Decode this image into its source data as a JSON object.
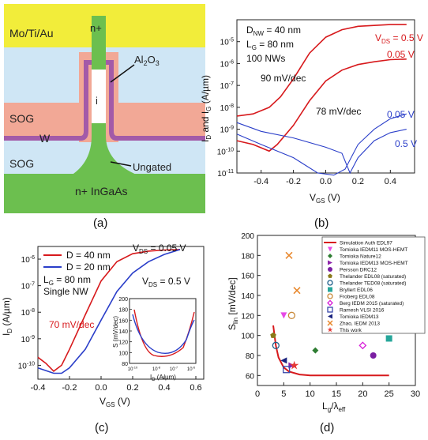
{
  "figure": {
    "panel_a": {
      "caption": "(a)",
      "labels": {
        "metal": "Mo/Ti/Au",
        "np": "n+",
        "al2o3": "Al",
        "al2o3_sub": "2",
        "al2o3_o": "O",
        "al2o3_sub2": "3",
        "i": "i",
        "sog_top": "SOG",
        "w": "W",
        "sog_bottom": "SOG",
        "ungated": "Ungated",
        "substrate": "n+ InGaAs"
      },
      "colors": {
        "metal": "#f2ed3a",
        "sog": "#cfe6f5",
        "w": "#f2a896",
        "nw": "#6cbf4f",
        "al2o3": "#a35aa8",
        "i": "#ffffff"
      }
    },
    "panel_b": {
      "caption": "(b)",
      "info": [
        "D",
        "NW",
        "= 40 nm",
        "L",
        "G",
        "= 80 nm",
        "100 NWs"
      ],
      "ss_left": "90 mV/dec",
      "ss_right": "78 mV/dec",
      "vds_red_top": "V",
      "vds_red_top_sub": "DS",
      "vds_red_top_val": " = 0.5 V",
      "vds_red_2": "0.05 V",
      "vds_blue_1": "0.05 V",
      "vds_blue_2": "0.5 V",
      "ylabel": [
        "I",
        "D",
        " and I",
        "G",
        " (A/µm)"
      ],
      "xlabel": [
        "V",
        "GS",
        " (V)"
      ],
      "xticks": [
        "-0.4",
        "-0.2",
        "0.0",
        "0.2",
        "0.4"
      ],
      "yticks": [
        {
          "b": "10",
          "e": "-5"
        },
        {
          "b": "10",
          "e": "-6"
        },
        {
          "b": "10",
          "e": "-7"
        },
        {
          "b": "10",
          "e": "-8"
        },
        {
          "b": "10",
          "e": "-9"
        },
        {
          "b": "10",
          "e": "-10"
        },
        {
          "b": "10",
          "e": "-11"
        }
      ]
    },
    "panel_c": {
      "caption": "(c)",
      "legend": [
        "D = 40 nm",
        "D = 20 nm"
      ],
      "info": [
        "L",
        "G",
        "= 80 nm",
        "Single NW"
      ],
      "vds_1": [
        "V",
        "DS",
        " = 0.05 V"
      ],
      "vds_2": [
        "V",
        "DS",
        " = 0.5 V"
      ],
      "ss": "70 mV/dec",
      "ylabel": [
        "I",
        "D",
        " (A/µm)"
      ],
      "xlabel": [
        "V",
        "GS",
        " (V)"
      ],
      "xticks": [
        "-0.4",
        "-0.2",
        "0.0",
        "0.2",
        "0.4",
        "0.6"
      ],
      "yticks": [
        {
          "b": "10",
          "e": "-6"
        },
        {
          "b": "10",
          "e": "-7"
        },
        {
          "b": "10",
          "e": "-8"
        },
        {
          "b": "10",
          "e": "-9"
        },
        {
          "b": "10",
          "e": "-10"
        }
      ],
      "inset": {
        "ylabel": "S (mV/dec)",
        "xlabel": [
          "I",
          "D",
          " (A/µm)"
        ],
        "yticks": [
          "200",
          "180",
          "160",
          "140",
          "120",
          "100",
          "80"
        ],
        "xticks": [
          {
            "b": "10",
            "e": "-10"
          },
          {
            "b": "10",
            "e": "-8"
          },
          {
            "b": "10",
            "e": "-7"
          },
          {
            "b": "10",
            "e": "-6"
          }
        ]
      }
    },
    "panel_d": {
      "caption": "(d)",
      "ylabel": [
        "S",
        "lin",
        " [mV/dec]"
      ],
      "xlabel": [
        "L",
        "g",
        "/λ",
        "eff"
      ],
      "xticks": [
        "0",
        "5",
        "10",
        "15",
        "20",
        "25",
        "30"
      ],
      "yticks": [
        "200",
        "180",
        "160",
        "140",
        "120",
        "100",
        "80",
        "60"
      ],
      "legend": [
        {
          "label": "Simulation Auth EDL97",
          "color": "#d7191c",
          "marker": "line"
        },
        {
          "label": "Tomioka IEDM11 MOS-HEMT",
          "color": "#e64ae6",
          "marker": "tri-down"
        },
        {
          "label": "Tomioka Nature12",
          "color": "#2e7d32",
          "marker": "diamond"
        },
        {
          "label": "Tomioka IEDM13 MOS-HEMT",
          "color": "#8e24aa",
          "marker": "tri-right"
        },
        {
          "label": "Persson DRC12",
          "color": "#7b1fa2",
          "marker": "hexagon"
        },
        {
          "label": "Thelander EDL08 (saturated)",
          "color": "#8a7a1a",
          "marker": "pentagon"
        },
        {
          "label": "Thelander TED08 (saturated)",
          "color": "#1f5f8b",
          "marker": "circle-open"
        },
        {
          "label": "Bryllert EDL06",
          "color": "#26a69a",
          "marker": "square"
        },
        {
          "label": "Froberg EDL08",
          "color": "#c98a3a",
          "marker": "circle-open"
        },
        {
          "label": "Berg IEDM 2015 (saturated)",
          "color": "#d81bd8",
          "marker": "diamond-open"
        },
        {
          "label": "Ramesh VLSI 2016",
          "color": "#3949ab",
          "marker": "square-open"
        },
        {
          "label": "Tomioka IEDM13",
          "color": "#1a237e",
          "marker": "tri-left"
        },
        {
          "label": "Zhao, IEDM 2013",
          "color": "#e8862a",
          "marker": "x"
        },
        {
          "label": "This work",
          "color": "#e53935",
          "marker": "star"
        }
      ]
    }
  },
  "chart_data": [
    {
      "type": "line",
      "xlabel": "VGS (V)",
      "ylabel": "ID and IG (A/µm)",
      "xlim": [
        -0.55,
        0.55
      ],
      "ylim": [
        1e-11,
        0.0001
      ],
      "yscale": "log",
      "series": [
        {
          "name": "VDS = 0.5 V",
          "x": [
            -0.55,
            -0.45,
            -0.35,
            -0.28,
            -0.2,
            -0.1,
            0.0,
            0.1,
            0.2,
            0.3,
            0.4,
            0.5
          ],
          "values": [
            4e-09,
            5e-09,
            1e-08,
            3e-08,
            2e-07,
            3e-06,
            1.6e-05,
            3.5e-05,
            5e-05,
            5.5e-05,
            6e-05,
            6e-05
          ]
        },
        {
          "name": "0.05 V",
          "x": [
            -0.55,
            -0.45,
            -0.35,
            -0.3,
            -0.2,
            -0.1,
            0.0,
            0.1,
            0.2,
            0.3,
            0.4,
            0.5
          ],
          "values": [
            3e-10,
            2e-10,
            1e-10,
            2e-10,
            1.5e-09,
            2e-08,
            1.6e-07,
            5e-07,
            9e-07,
            1.2e-06,
            1.5e-06,
            1.6e-06
          ]
        },
        {
          "name": "0.05 V",
          "x": [
            -0.55,
            -0.4,
            -0.2,
            0.0,
            0.1,
            0.15,
            0.2,
            0.3,
            0.4,
            0.5
          ],
          "values": [
            2e-09,
            8e-10,
            4e-10,
            1.5e-10,
            8e-11,
            1e-11,
            5e-11,
            3e-10,
            7e-10,
            1e-09
          ]
        },
        {
          "name": "0.5 V",
          "x": [
            -0.55,
            -0.4,
            -0.2,
            -0.05,
            0.05,
            0.12,
            0.2,
            0.3,
            0.4,
            0.5
          ],
          "values": [
            6e-10,
            2e-10,
            5e-11,
            1e-11,
            8e-12,
            1.5e-11,
            2e-10,
            1e-09,
            3e-09,
            5e-09
          ]
        }
      ]
    },
    {
      "type": "line",
      "xlabel": "VGS (V)",
      "ylabel": "ID (A/µm)",
      "xlim": [
        -0.4,
        0.65
      ],
      "ylim": [
        3e-11,
        3e-06
      ],
      "yscale": "log",
      "series": [
        {
          "name": "D = 40 nm",
          "x": [
            -0.4,
            -0.35,
            -0.3,
            -0.25,
            -0.2,
            -0.1,
            0.0,
            0.1,
            0.2,
            0.3,
            0.4,
            0.5
          ],
          "values": [
            2e-10,
            1.2e-10,
            6e-11,
            1e-10,
            4e-10,
            8e-09,
            1.5e-07,
            8e-07,
            1.6e-06,
            2e-06,
            2.2e-06,
            2.3e-06
          ]
        },
        {
          "name": "D = 20 nm",
          "x": [
            -0.4,
            -0.3,
            -0.25,
            -0.2,
            -0.1,
            0.0,
            0.1,
            0.2,
            0.3,
            0.4,
            0.5
          ],
          "values": [
            8e-11,
            5e-11,
            5e-11,
            8e-11,
            4e-10,
            5e-09,
            6e-08,
            3e-07,
            8e-07,
            1.5e-06,
            2.3e-06
          ]
        }
      ]
    },
    {
      "type": "scatter",
      "xlabel": "Lg/λeff",
      "ylabel": "Slin [mV/dec]",
      "xlim": [
        0,
        30
      ],
      "ylim": [
        50,
        200
      ],
      "series": [
        {
          "name": "Simulation Auth EDL97",
          "x": [
            3,
            3.5,
            4,
            5,
            6,
            8,
            10,
            15,
            20,
            25
          ],
          "values": [
            110,
            90,
            78,
            68,
            64,
            61,
            60,
            60,
            60,
            60
          ]
        },
        {
          "name": "Tomioka IEDM11 MOS-HEMT",
          "x": [
            5
          ],
          "values": [
            120
          ]
        },
        {
          "name": "Tomioka Nature12",
          "x": [
            11
          ],
          "values": [
            85
          ]
        },
        {
          "name": "Tomioka IEDM13 MOS-HEMT",
          "x": [
            6.5
          ],
          "values": [
            70
          ]
        },
        {
          "name": "Persson DRC12",
          "x": [
            22
          ],
          "values": [
            80
          ]
        },
        {
          "name": "Thelander EDL08 (saturated)",
          "x": [
            3
          ],
          "values": [
            100
          ]
        },
        {
          "name": "Thelander TED08 (saturated)",
          "x": [
            3.5
          ],
          "values": [
            90
          ]
        },
        {
          "name": "Bryllert EDL06",
          "x": [
            25
          ],
          "values": [
            97
          ]
        },
        {
          "name": "Froberg EDL08",
          "x": [
            6.5
          ],
          "values": [
            120
          ]
        },
        {
          "name": "Berg IEDM 2015 (saturated)",
          "x": [
            20
          ],
          "values": [
            90
          ]
        },
        {
          "name": "Ramesh VLSI 2016",
          "x": [
            5.5
          ],
          "values": [
            66
          ]
        },
        {
          "name": "Tomioka IEDM13",
          "x": [
            5
          ],
          "values": [
            75
          ]
        },
        {
          "name": "Zhao, IEDM 2013",
          "x": [
            6,
            7.5
          ],
          "values": [
            180,
            145
          ]
        },
        {
          "name": "This work",
          "x": [
            7
          ],
          "values": [
            70
          ]
        }
      ]
    }
  ]
}
